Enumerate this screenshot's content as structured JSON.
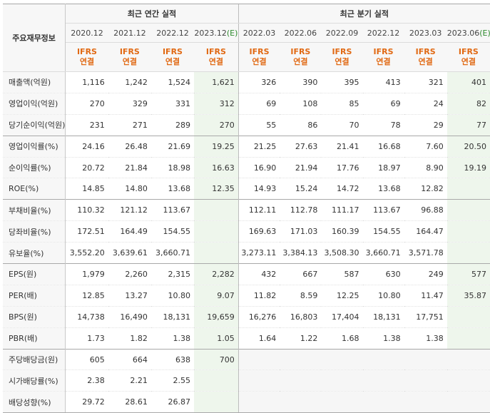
{
  "header": {
    "row_label": "주요재무정보",
    "annual_group": "최근 연간 실적",
    "quarter_group": "최근 분기 실적",
    "annual_periods": [
      "2020.12",
      "2021.12",
      "2022.12",
      "2023.12"
    ],
    "annual_estimate_mark": "(E)",
    "quarter_periods": [
      "2022.03",
      "2022.06",
      "2022.09",
      "2022.12",
      "2023.03",
      "2023.06"
    ],
    "quarter_estimate_mark": "(E)",
    "basis_line1": "IFRS",
    "basis_line2": "연결"
  },
  "rows": [
    {
      "label": "매출액(억원)",
      "annual": [
        "1,116",
        "1,242",
        "1,524",
        "1,621"
      ],
      "quarter": [
        "326",
        "390",
        "395",
        "413",
        "321",
        "401"
      ]
    },
    {
      "label": "영업이익(억원)",
      "annual": [
        "270",
        "329",
        "331",
        "312"
      ],
      "quarter": [
        "69",
        "108",
        "85",
        "69",
        "24",
        "82"
      ]
    },
    {
      "label": "당기순이익(억원)",
      "annual": [
        "231",
        "271",
        "289",
        "270"
      ],
      "quarter": [
        "55",
        "86",
        "70",
        "78",
        "29",
        "77"
      ]
    },
    {
      "label": "영업이익률(%)",
      "annual": [
        "24.16",
        "26.48",
        "21.69",
        "19.25"
      ],
      "quarter": [
        "21.25",
        "27.63",
        "21.41",
        "16.68",
        "7.60",
        "20.50"
      ]
    },
    {
      "label": "순이익률(%)",
      "annual": [
        "20.72",
        "21.84",
        "18.98",
        "16.63"
      ],
      "quarter": [
        "16.90",
        "21.94",
        "17.76",
        "18.97",
        "8.90",
        "19.19"
      ]
    },
    {
      "label": "ROE(%)",
      "annual": [
        "14.85",
        "14.80",
        "13.68",
        "12.35"
      ],
      "quarter": [
        "14.93",
        "15.24",
        "14.72",
        "13.68",
        "12.82",
        ""
      ]
    },
    {
      "label": "부채비율(%)",
      "annual": [
        "110.32",
        "121.12",
        "113.67",
        ""
      ],
      "quarter": [
        "112.11",
        "112.78",
        "111.17",
        "113.67",
        "96.88",
        ""
      ]
    },
    {
      "label": "당좌비율(%)",
      "annual": [
        "172.51",
        "164.49",
        "154.55",
        ""
      ],
      "quarter": [
        "169.63",
        "171.03",
        "160.39",
        "154.55",
        "164.47",
        ""
      ]
    },
    {
      "label": "유보율(%)",
      "annual": [
        "3,552.20",
        "3,639.61",
        "3,660.71",
        ""
      ],
      "quarter": [
        "3,273.11",
        "3,384.13",
        "3,508.30",
        "3,660.71",
        "3,571.78",
        ""
      ]
    },
    {
      "label": "EPS(원)",
      "annual": [
        "1,979",
        "2,260",
        "2,315",
        "2,282"
      ],
      "quarter": [
        "432",
        "667",
        "587",
        "630",
        "249",
        "577"
      ]
    },
    {
      "label": "PER(배)",
      "annual": [
        "12.85",
        "13.27",
        "10.80",
        "9.07"
      ],
      "quarter": [
        "11.82",
        "8.59",
        "12.25",
        "10.80",
        "11.47",
        "35.87"
      ]
    },
    {
      "label": "BPS(원)",
      "annual": [
        "14,738",
        "16,490",
        "18,131",
        "19,659"
      ],
      "quarter": [
        "16,276",
        "16,803",
        "17,404",
        "18,131",
        "17,751",
        ""
      ]
    },
    {
      "label": "PBR(배)",
      "annual": [
        "1.73",
        "1.82",
        "1.38",
        "1.05"
      ],
      "quarter": [
        "1.64",
        "1.22",
        "1.68",
        "1.38",
        "1.38",
        ""
      ]
    },
    {
      "label": "주당배당금(원)",
      "annual": [
        "605",
        "664",
        "638",
        "700"
      ],
      "quarter": [
        "",
        "",
        "",
        "",
        "",
        ""
      ]
    },
    {
      "label": "시가배당률(%)",
      "annual": [
        "2.38",
        "2.21",
        "2.55",
        ""
      ],
      "quarter": [
        "",
        "",
        "",
        "",
        "",
        ""
      ]
    },
    {
      "label": "배당성향(%)",
      "annual": [
        "29.72",
        "28.61",
        "26.87",
        ""
      ],
      "quarter": [
        "",
        "",
        "",
        "",
        "",
        ""
      ]
    }
  ],
  "colors": {
    "basis_accent": "#e16913",
    "estimate_accent": "#2e8b2e",
    "estimate_bg": "#eef6ec",
    "header_bg": "#f7f7f7"
  }
}
